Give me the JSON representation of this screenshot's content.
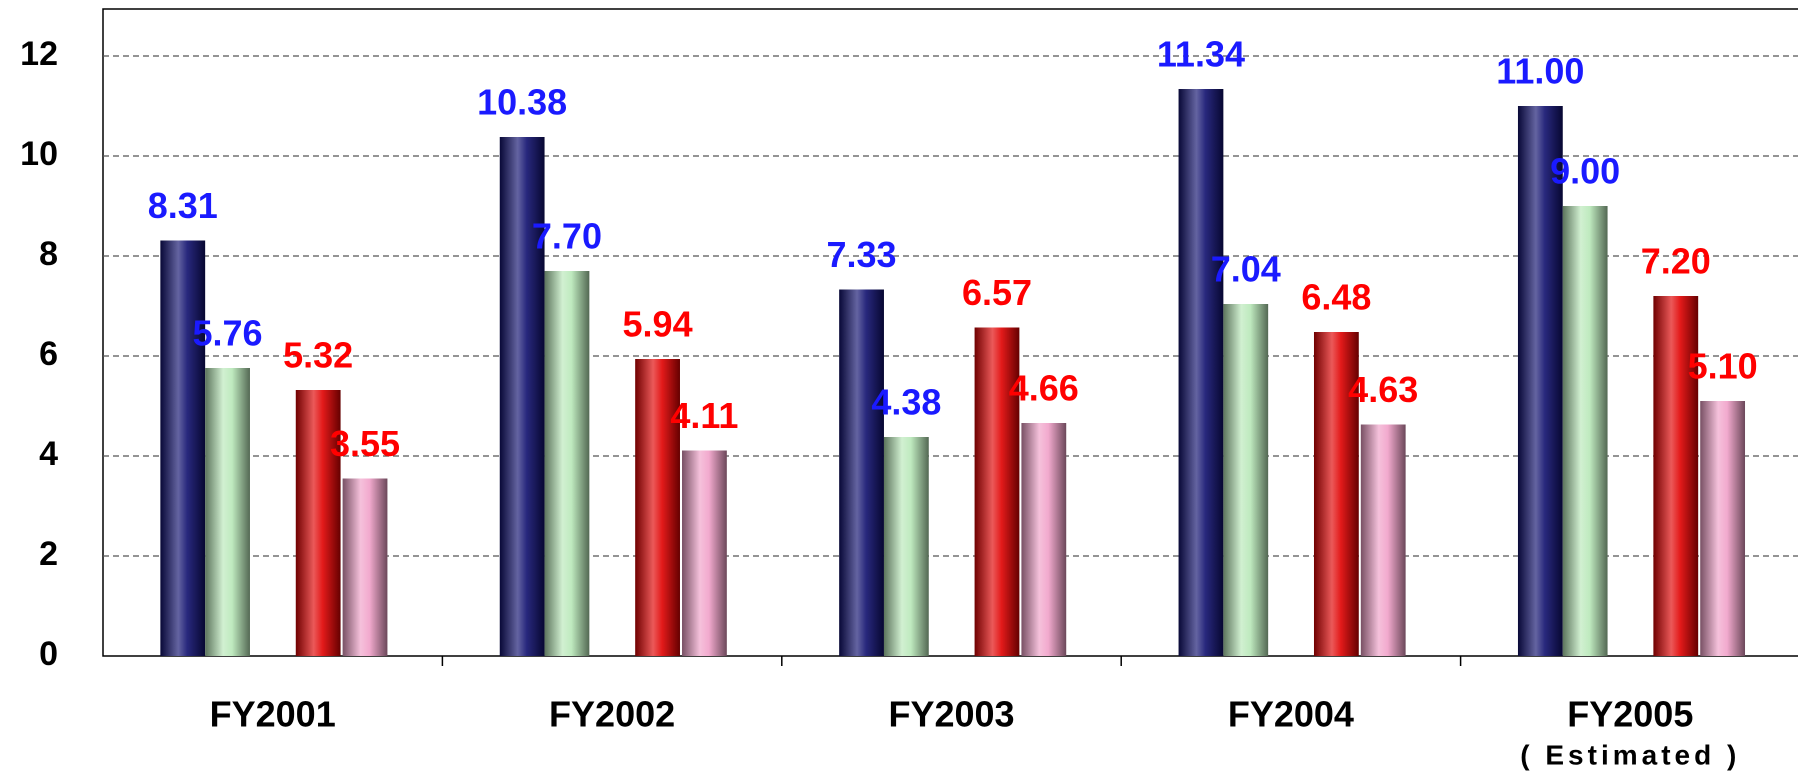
{
  "chart_data": {
    "type": "bar",
    "categories": [
      "FY2001",
      "FY2002",
      "FY2003",
      "FY2004",
      "FY2005"
    ],
    "annotations": [
      {
        "text": "( Estimated )",
        "category": 4
      }
    ],
    "series": [
      {
        "color": "#10106e",
        "label_color": "#1a1aff",
        "values": [
          8.31,
          10.38,
          7.33,
          11.34,
          11.0
        ],
        "value_labels": [
          "8.31",
          "10.38",
          "7.33",
          "11.34",
          "11.00"
        ]
      },
      {
        "color": "#b8e8b8",
        "label_color": "#1a1aff",
        "values": [
          5.76,
          7.7,
          4.38,
          7.04,
          9.0
        ],
        "value_labels": [
          "5.76",
          "7.70",
          "4.38",
          "7.04",
          "9.00"
        ]
      },
      {
        "color": "#e00000",
        "label_color": "#ff0000",
        "values": [
          5.32,
          5.94,
          6.57,
          6.48,
          7.2
        ],
        "value_labels": [
          "5.32",
          "5.94",
          "6.57",
          "6.48",
          "7.20"
        ]
      },
      {
        "color": "#f0a0c8",
        "label_color": "#ff0000",
        "values": [
          3.55,
          4.11,
          4.66,
          4.63,
          5.1
        ],
        "value_labels": [
          "3.55",
          "4.11",
          "4.66",
          "4.63",
          "5.10"
        ]
      }
    ],
    "ylim": [
      0,
      12.94
    ],
    "yticks": [
      0,
      2,
      4,
      6,
      8,
      10,
      12
    ],
    "grid": true
  }
}
